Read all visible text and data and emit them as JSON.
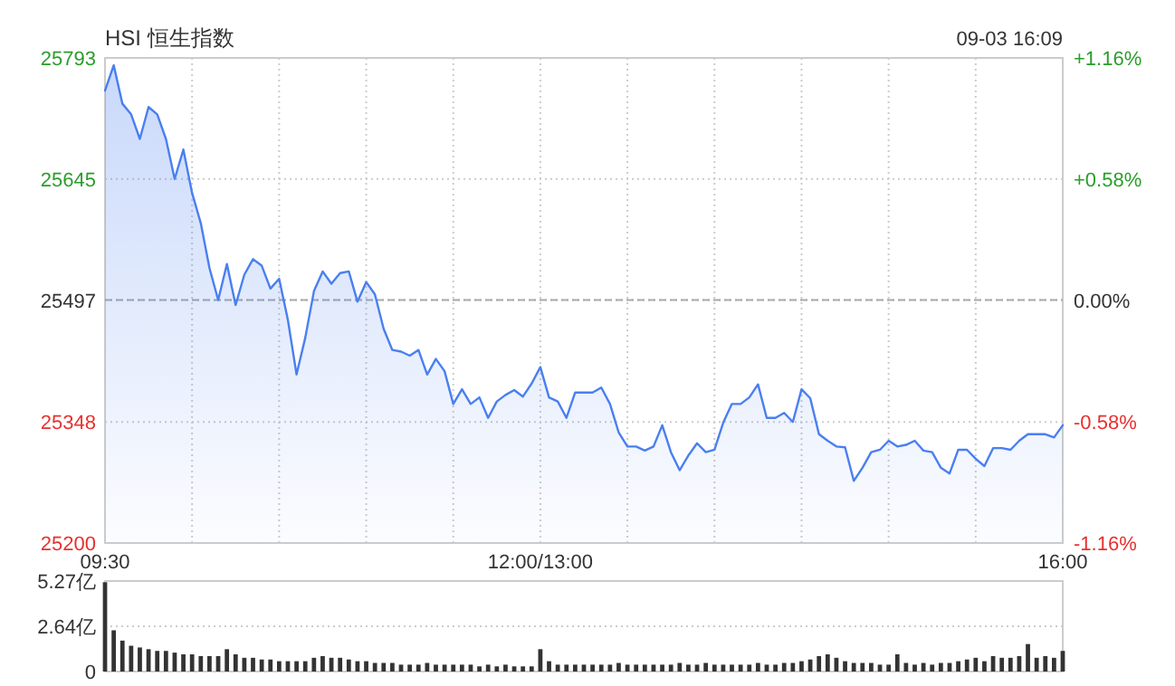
{
  "chart_data": [
    {
      "type": "area",
      "title": "HSI 恒生指数",
      "annotations": [
        "09-03 16:09"
      ],
      "color": "#4a7ff0",
      "grid": true,
      "categories": [
        "09:30",
        null,
        null,
        null,
        null,
        null,
        null,
        null,
        null,
        null,
        null,
        null,
        null,
        null,
        null,
        null,
        null,
        null,
        null,
        null,
        null,
        null,
        null,
        null,
        null,
        null,
        null,
        null,
        null,
        null,
        null,
        null,
        null,
        null,
        null,
        null,
        null,
        null,
        null,
        null,
        null,
        null,
        null,
        null,
        null,
        null,
        null,
        null,
        null,
        null,
        "12:00/13:00",
        null,
        null,
        null,
        null,
        null,
        null,
        null,
        null,
        null,
        null,
        null,
        null,
        null,
        null,
        null,
        null,
        null,
        null,
        null,
        null,
        null,
        null,
        null,
        null,
        null,
        null,
        null,
        null,
        null,
        null,
        null,
        null,
        null,
        null,
        null,
        null,
        null,
        null,
        null,
        null,
        null,
        null,
        null,
        null,
        null,
        null,
        null,
        null,
        null,
        null,
        null,
        null,
        null,
        null,
        null,
        null,
        null,
        null,
        null,
        "16:00"
      ],
      "values": [
        25753,
        25784,
        25737,
        25724,
        25694,
        25733,
        25724,
        25694,
        25645,
        25681,
        25628,
        25591,
        25536,
        25497,
        25541,
        25491,
        25528,
        25547,
        25539,
        25511,
        25523,
        25473,
        25406,
        25451,
        25508,
        25532,
        25517,
        25530,
        25532,
        25495,
        25519,
        25504,
        25462,
        25436,
        25434,
        25429,
        25436,
        25406,
        25425,
        25410,
        25370,
        25388,
        25370,
        25378,
        25353,
        25373,
        25381,
        25387,
        25379,
        25395,
        25415,
        25378,
        25373,
        25353,
        25384,
        25384,
        25384,
        25390,
        25370,
        25335,
        25318,
        25318,
        25313,
        25318,
        25344,
        25311,
        25289,
        25307,
        25322,
        25311,
        25314,
        25347,
        25370,
        25370,
        25378,
        25394,
        25353,
        25353,
        25359,
        25348,
        25388,
        25377,
        25333,
        25325,
        25318,
        25317,
        25276,
        25292,
        25311,
        25314,
        25325,
        25318,
        25320,
        25325,
        25313,
        25311,
        25292,
        25285,
        25314,
        25314,
        25303,
        25294,
        25316,
        25316,
        25314,
        25325,
        25333,
        25333,
        25333,
        25329,
        25344
      ],
      "ylim": [
        25200,
        25793
      ],
      "yticks": [
        25200,
        25348,
        25497,
        25645,
        25793
      ],
      "y2lim": [
        -1.16,
        1.16
      ],
      "y2ticks": [
        {
          "value": -1.16,
          "label": "-1.16%"
        },
        {
          "value": -0.58,
          "label": "-0.58%"
        },
        {
          "value": 0,
          "label": "0.00%"
        },
        {
          "value": 0.58,
          "label": "+0.58%"
        },
        {
          "value": 1.16,
          "label": "+1.16%"
        }
      ],
      "ref_lines": [
        {
          "axis": "y",
          "value": 25497,
          "color": "#aaaaaa",
          "line_style": "dashed"
        }
      ]
    },
    {
      "type": "bar",
      "color": "#333333",
      "grid": "y",
      "tick_labels": "y",
      "categories": [
        null,
        null,
        null,
        null,
        null,
        null,
        null,
        null,
        null,
        null,
        null,
        null,
        null,
        null,
        null,
        null,
        null,
        null,
        null,
        null,
        null,
        null,
        null,
        null,
        null,
        null,
        null,
        null,
        null,
        null,
        null,
        null,
        null,
        null,
        null,
        null,
        null,
        null,
        null,
        null,
        null,
        null,
        null,
        null,
        null,
        null,
        null,
        null,
        null,
        null,
        null,
        null,
        null,
        null,
        null,
        null,
        null,
        null,
        null,
        null,
        null,
        null,
        null,
        null,
        null,
        null,
        null,
        null,
        null,
        null,
        null,
        null,
        null,
        null,
        null,
        null,
        null,
        null,
        null,
        null,
        null,
        null,
        null,
        null,
        null,
        null,
        null,
        null,
        null,
        null,
        null,
        null,
        null,
        null,
        null,
        null,
        null,
        null,
        null,
        null,
        null,
        null,
        null,
        null,
        null,
        null,
        null,
        null,
        null,
        null,
        null
      ],
      "values": [
        5.2,
        2.4,
        1.8,
        1.5,
        1.4,
        1.3,
        1.2,
        1.2,
        1.1,
        1.0,
        1.0,
        0.9,
        0.9,
        0.9,
        1.3,
        1.0,
        0.8,
        0.8,
        0.7,
        0.7,
        0.6,
        0.6,
        0.6,
        0.6,
        0.8,
        0.9,
        0.8,
        0.8,
        0.7,
        0.6,
        0.6,
        0.5,
        0.5,
        0.5,
        0.4,
        0.4,
        0.4,
        0.5,
        0.4,
        0.4,
        0.4,
        0.4,
        0.4,
        0.3,
        0.4,
        0.3,
        0.4,
        0.3,
        0.3,
        0.3,
        1.3,
        0.6,
        0.4,
        0.4,
        0.4,
        0.4,
        0.4,
        0.4,
        0.4,
        0.5,
        0.4,
        0.4,
        0.4,
        0.4,
        0.4,
        0.4,
        0.5,
        0.4,
        0.4,
        0.5,
        0.4,
        0.4,
        0.4,
        0.4,
        0.4,
        0.5,
        0.4,
        0.4,
        0.5,
        0.5,
        0.6,
        0.7,
        0.9,
        1.0,
        0.8,
        0.6,
        0.5,
        0.5,
        0.5,
        0.4,
        0.4,
        1.0,
        0.5,
        0.4,
        0.5,
        0.4,
        0.5,
        0.5,
        0.6,
        0.7,
        0.8,
        0.6,
        0.9,
        0.8,
        0.8,
        0.9,
        1.6,
        0.8,
        0.9,
        0.8,
        1.2
      ],
      "ylim": [
        0,
        5.27
      ],
      "yticks": [
        0,
        {
          "value": 2.64,
          "label": "2.64亿"
        },
        {
          "value": 5.27,
          "label": "5.27亿"
        }
      ]
    }
  ]
}
